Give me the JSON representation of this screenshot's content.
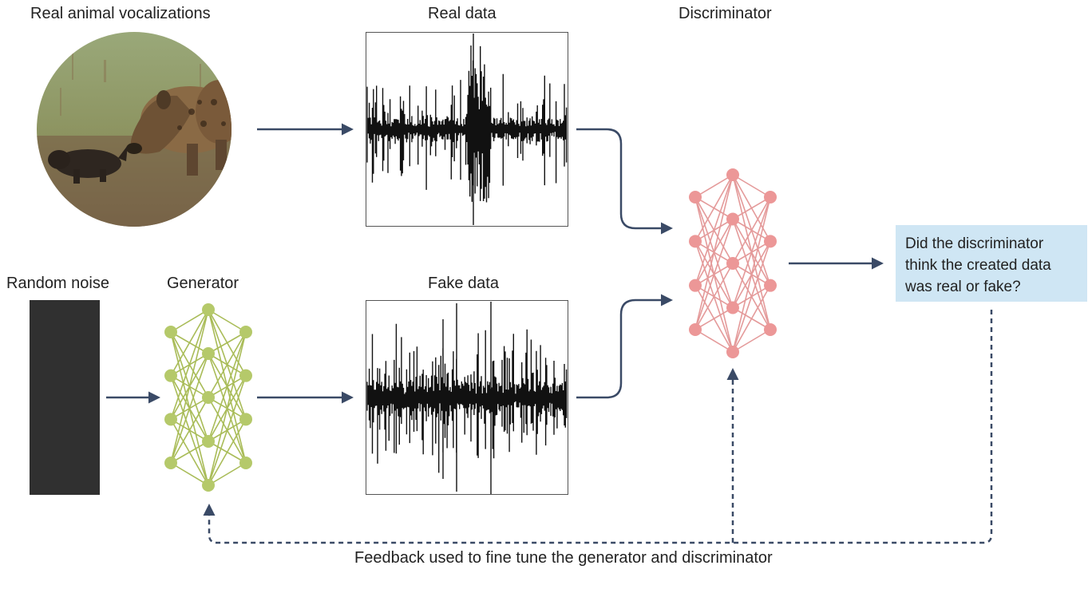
{
  "labels": {
    "real_vocalizations": "Real animal vocalizations",
    "real_data": "Real data",
    "discriminator": "Discriminator",
    "random_noise": "Random noise",
    "generator": "Generator",
    "fake_data": "Fake data",
    "question": "Did the discriminator think the created data was real or fake?",
    "feedback": "Feedback used to fine tune the generator and discriminator"
  },
  "colors": {
    "arrow": "#3a4a66",
    "generator_net": "#a9bc58",
    "generator_node": "#b5c96a",
    "discriminator_net": "#e49a9a",
    "discriminator_node": "#ec9797",
    "question_box": "#cfe6f4",
    "waveform": "#111111"
  },
  "networks": {
    "generator": {
      "layers": [
        4,
        5,
        4
      ]
    },
    "discriminator": {
      "layers": [
        4,
        5,
        4
      ]
    }
  },
  "icons": {
    "photo": "hyena-with-cub-photo",
    "noise": "random-noise-block"
  }
}
